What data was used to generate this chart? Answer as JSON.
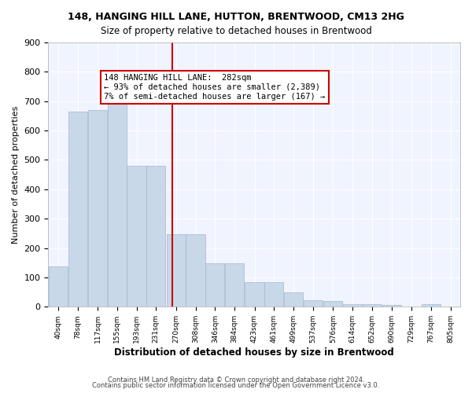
{
  "title": "148, HANGING HILL LANE, HUTTON, BRENTWOOD, CM13 2HG",
  "subtitle": "Size of property relative to detached houses in Brentwood",
  "xlabel": "Distribution of detached houses by size in Brentwood",
  "ylabel": "Number of detached properties",
  "bar_values": [
    138,
    665,
    670,
    695,
    480,
    480,
    248,
    248,
    148,
    148,
    85,
    85,
    48,
    22,
    20,
    10,
    8,
    5,
    0,
    10,
    0
  ],
  "bin_edges": [
    40,
    78,
    117,
    155,
    193,
    231,
    270,
    308,
    346,
    384,
    423,
    461,
    499,
    537,
    576,
    614,
    652,
    690,
    729,
    767,
    805
  ],
  "bin_labels": [
    "40sqm",
    "78sqm",
    "117sqm",
    "155sqm",
    "193sqm",
    "231sqm",
    "270sqm",
    "308sqm",
    "346sqm",
    "384sqm",
    "423sqm",
    "461sqm",
    "499sqm",
    "537sqm",
    "576sqm",
    "614sqm",
    "652sqm",
    "690sqm",
    "729sqm",
    "767sqm",
    "805sqm"
  ],
  "bar_color": "#c8d8e8",
  "bar_edge_color": "#a0b8d0",
  "vline_x": 282,
  "vline_color": "#cc0000",
  "annotation_text": "148 HANGING HILL LANE:  282sqm\n← 93% of detached houses are smaller (2,389)\n7% of semi-detached houses are larger (167) →",
  "annotation_box_color": "#ffffff",
  "annotation_box_edge": "#cc0000",
  "ylim": [
    0,
    900
  ],
  "yticks": [
    0,
    100,
    200,
    300,
    400,
    500,
    600,
    700,
    800,
    900
  ],
  "background_color": "#f0f4ff",
  "grid_color": "#ffffff",
  "footer_line1": "Contains HM Land Registry data © Crown copyright and database right 2024.",
  "footer_line2": "Contains public sector information licensed under the Open Government Licence v3.0."
}
